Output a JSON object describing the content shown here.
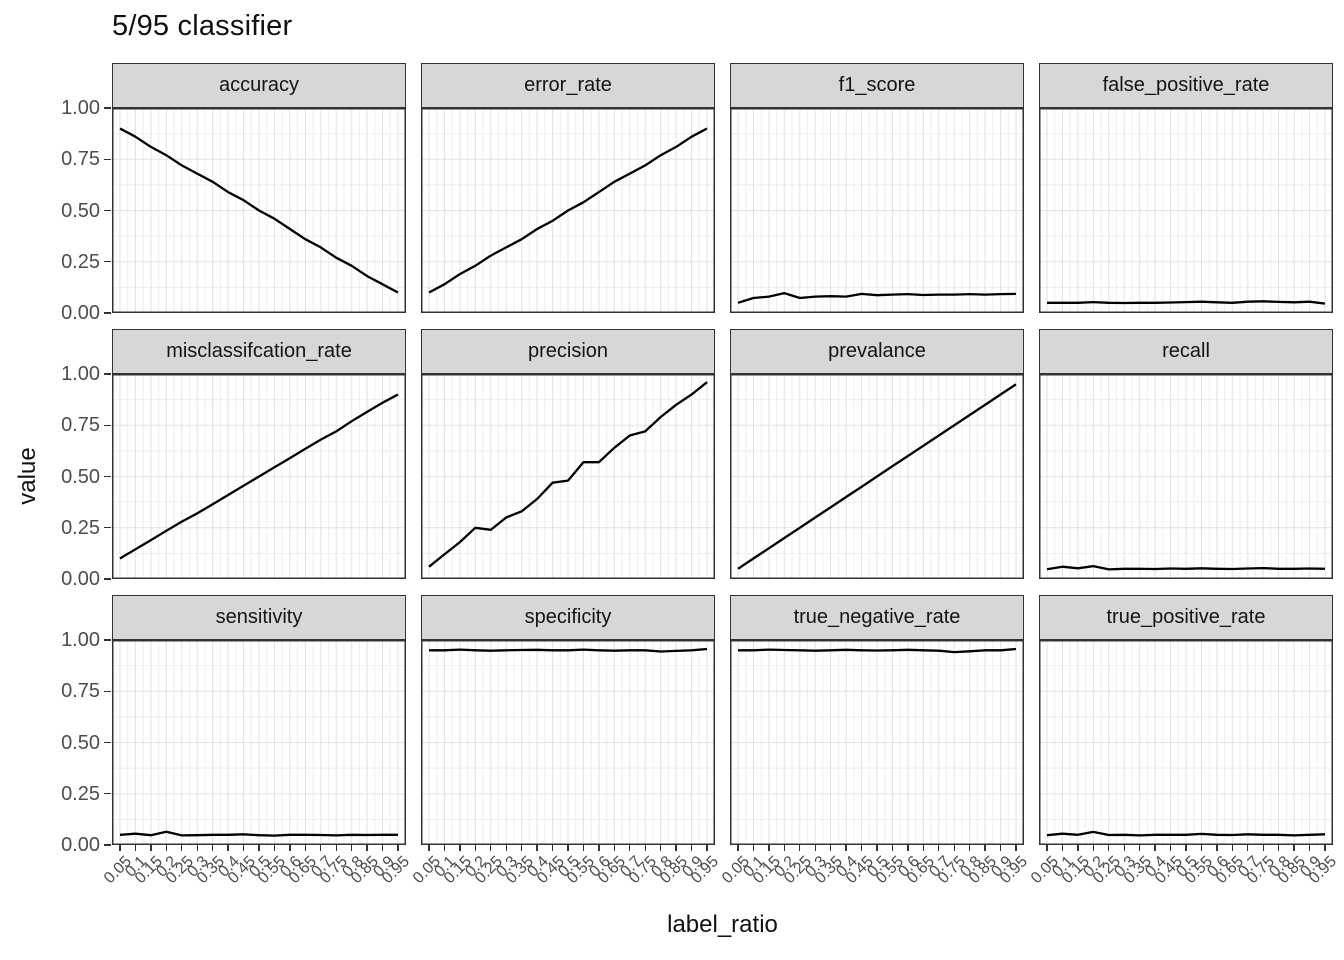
{
  "title": "5/95 classifier",
  "axes": {
    "x_label": "label_ratio",
    "y_label": "value",
    "y_ticks": [
      "0.00",
      "0.25",
      "0.50",
      "0.75",
      "1.00"
    ],
    "x_ticks": [
      "0.05",
      "0.1",
      "0.15",
      "0.2",
      "0.25",
      "0.3",
      "0.35",
      "0.4",
      "0.45",
      "0.5",
      "0.55",
      "0.6",
      "0.65",
      "0.7",
      "0.75",
      "0.8",
      "0.85",
      "0.9",
      "0.95"
    ]
  },
  "colors": {
    "strip_bg": "#d7d7d7",
    "panel_border": "#333333",
    "grid_major": "#e3e3e3",
    "grid_minor": "#eeeeee",
    "line": "#000000",
    "axis_text": "#4d4d4d"
  },
  "chart_data": {
    "type": "line",
    "title": "5/95 classifier",
    "xlabel": "label_ratio",
    "ylabel": "value",
    "facet_layout": {
      "rows": 3,
      "cols": 4
    },
    "grid": "on",
    "legend": "none",
    "ylim": [
      0,
      1
    ],
    "y_major_breaks": [
      0,
      0.25,
      0.5,
      0.75,
      1.0
    ],
    "y_minor_breaks": [
      0.125,
      0.375,
      0.625,
      0.875
    ],
    "x": [
      0.05,
      0.1,
      0.15,
      0.2,
      0.25,
      0.3,
      0.35,
      0.4,
      0.45,
      0.5,
      0.55,
      0.6,
      0.65,
      0.7,
      0.75,
      0.8,
      0.85,
      0.9,
      0.95
    ],
    "series": [
      {
        "name": "accuracy",
        "values": [
          0.9,
          0.86,
          0.81,
          0.77,
          0.72,
          0.68,
          0.64,
          0.59,
          0.55,
          0.5,
          0.46,
          0.41,
          0.36,
          0.32,
          0.27,
          0.23,
          0.18,
          0.14,
          0.1
        ]
      },
      {
        "name": "error_rate",
        "values": [
          0.1,
          0.14,
          0.19,
          0.23,
          0.28,
          0.32,
          0.36,
          0.41,
          0.45,
          0.5,
          0.54,
          0.59,
          0.64,
          0.68,
          0.72,
          0.77,
          0.81,
          0.86,
          0.9
        ]
      },
      {
        "name": "f1_score",
        "values": [
          0.05,
          0.073,
          0.08,
          0.097,
          0.073,
          0.08,
          0.082,
          0.08,
          0.093,
          0.087,
          0.09,
          0.092,
          0.088,
          0.09,
          0.09,
          0.092,
          0.09,
          0.092,
          0.093
        ]
      },
      {
        "name": "false_positive_rate",
        "values": [
          0.05,
          0.05,
          0.05,
          0.053,
          0.05,
          0.049,
          0.05,
          0.05,
          0.051,
          0.053,
          0.055,
          0.052,
          0.05,
          0.055,
          0.057,
          0.054,
          0.052,
          0.055,
          0.046
        ]
      },
      {
        "name": "misclassifcation_rate",
        "values": [
          0.1,
          0.145,
          0.19,
          0.235,
          0.28,
          0.32,
          0.365,
          0.41,
          0.455,
          0.5,
          0.545,
          0.59,
          0.635,
          0.68,
          0.72,
          0.77,
          0.815,
          0.86,
          0.9
        ]
      },
      {
        "name": "precision",
        "values": [
          0.06,
          0.12,
          0.18,
          0.25,
          0.24,
          0.3,
          0.33,
          0.39,
          0.47,
          0.48,
          0.57,
          0.57,
          0.64,
          0.7,
          0.72,
          0.79,
          0.85,
          0.9,
          0.96
        ]
      },
      {
        "name": "prevalance",
        "values": [
          0.05,
          0.1,
          0.15,
          0.2,
          0.25,
          0.3,
          0.35,
          0.4,
          0.45,
          0.5,
          0.55,
          0.6,
          0.65,
          0.7,
          0.75,
          0.8,
          0.85,
          0.9,
          0.95
        ]
      },
      {
        "name": "recall",
        "values": [
          0.048,
          0.06,
          0.052,
          0.063,
          0.047,
          0.05,
          0.05,
          0.049,
          0.051,
          0.05,
          0.052,
          0.05,
          0.049,
          0.051,
          0.053,
          0.05,
          0.05,
          0.051,
          0.05
        ]
      },
      {
        "name": "sensitivity",
        "values": [
          0.05,
          0.055,
          0.048,
          0.065,
          0.047,
          0.048,
          0.05,
          0.05,
          0.052,
          0.048,
          0.046,
          0.05,
          0.05,
          0.049,
          0.047,
          0.05,
          0.049,
          0.05,
          0.05
        ]
      },
      {
        "name": "specificity",
        "values": [
          0.95,
          0.95,
          0.953,
          0.95,
          0.948,
          0.95,
          0.951,
          0.952,
          0.95,
          0.95,
          0.953,
          0.95,
          0.948,
          0.95,
          0.95,
          0.944,
          0.947,
          0.95,
          0.956
        ]
      },
      {
        "name": "true_negative_rate",
        "values": [
          0.95,
          0.95,
          0.953,
          0.951,
          0.95,
          0.948,
          0.95,
          0.952,
          0.95,
          0.949,
          0.95,
          0.952,
          0.95,
          0.948,
          0.941,
          0.945,
          0.95,
          0.95,
          0.956
        ]
      },
      {
        "name": "true_positive_rate",
        "values": [
          0.048,
          0.055,
          0.05,
          0.064,
          0.049,
          0.05,
          0.047,
          0.05,
          0.05,
          0.05,
          0.054,
          0.05,
          0.049,
          0.052,
          0.05,
          0.05,
          0.047,
          0.05,
          0.052
        ]
      }
    ]
  }
}
